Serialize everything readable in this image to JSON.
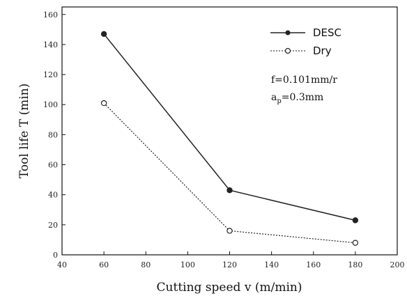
{
  "chart_data": {
    "type": "line",
    "xlabel": "Cutting speed v (m/min)",
    "ylabel": "Tool life T (min)",
    "xlim": [
      40,
      200
    ],
    "ylim": [
      0,
      165
    ],
    "xticks": [
      40,
      60,
      80,
      100,
      120,
      140,
      160,
      180,
      200
    ],
    "yticks": [
      0,
      20,
      40,
      60,
      80,
      100,
      120,
      140,
      160
    ],
    "grid": false,
    "legend_position": "top-right",
    "series": [
      {
        "name": "DESC",
        "x": [
          60,
          120,
          180
        ],
        "y": [
          147,
          43,
          23
        ],
        "line_style": "solid",
        "marker": "filled-circle",
        "color": "#222222"
      },
      {
        "name": "Dry",
        "x": [
          60,
          120,
          180
        ],
        "y": [
          101,
          16,
          8
        ],
        "line_style": "dotted",
        "marker": "open-circle",
        "color": "#222222"
      }
    ],
    "annotations": {
      "feed": "f=0.101mm/r",
      "depth_prefix": "a",
      "depth_subscript": "p",
      "depth_suffix": "=0.3mm"
    }
  }
}
